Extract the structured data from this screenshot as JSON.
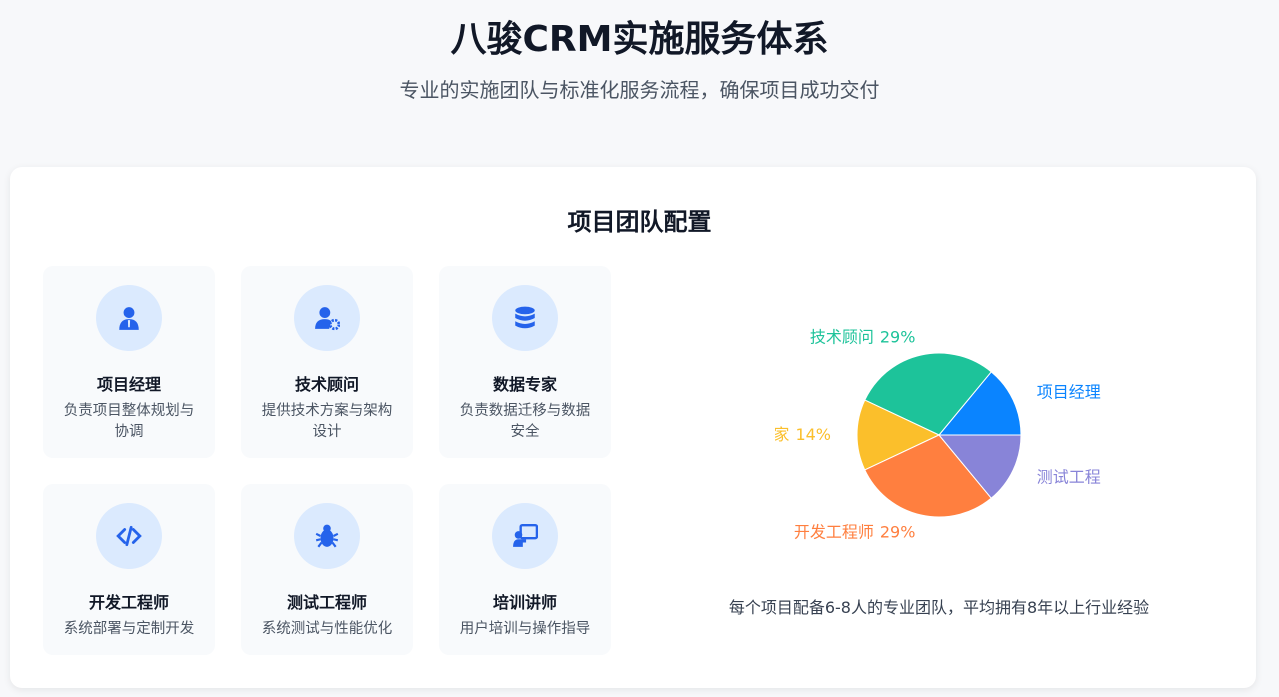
{
  "header": {
    "title": "八骏CRM实施服务体系",
    "subtitle": "专业的实施团队与标准化服务流程，确保项目成功交付"
  },
  "team": {
    "title": "项目团队配置",
    "roles": [
      {
        "name": "项目经理",
        "desc": "负责项目整体规划与协调"
      },
      {
        "name": "技术顾问",
        "desc": "提供技术方案与架构设计"
      },
      {
        "name": "数据专家",
        "desc": "负责数据迁移与数据安全"
      },
      {
        "name": "开发工程师",
        "desc": "系统部署与定制开发"
      },
      {
        "name": "测试工程师",
        "desc": "系统测试与性能优化"
      },
      {
        "name": "培训讲师",
        "desc": "用户培训与操作指导"
      }
    ],
    "note": "每个项目配备6-8人的专业团队，平均拥有8年以上行业经验"
  },
  "chart_data": {
    "type": "pie",
    "categories": [
      "项目经理",
      "技术顾问",
      "数据专家",
      "开发工程师",
      "测试工程师"
    ],
    "values": [
      14,
      29,
      14,
      29,
      14
    ],
    "value_labels": [
      "14%",
      "29%",
      "14%",
      "29%",
      "14%"
    ],
    "colors": [
      "#0a84ff",
      "#1dc39a",
      "#fbbf2b",
      "#ff7f3f",
      "#8884d8"
    ]
  }
}
